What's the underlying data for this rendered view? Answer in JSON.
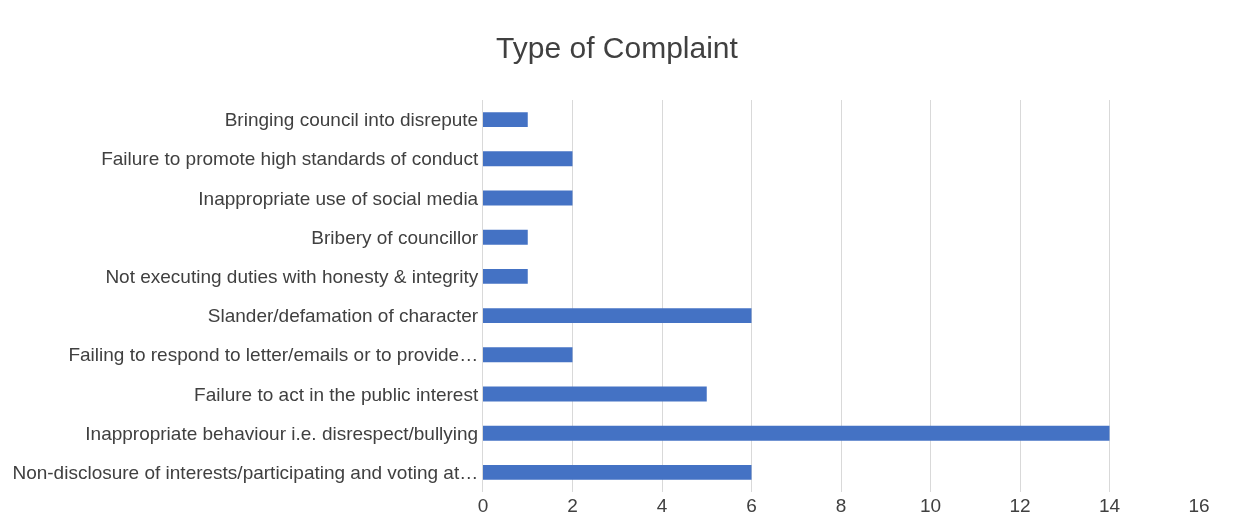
{
  "chart_data": {
    "type": "bar",
    "orientation": "horizontal",
    "title": "Type of Complaint",
    "categories": [
      "Bringing council into disrepute",
      "Failure to promote high standards of conduct",
      "Inappropriate use of social media",
      "Bribery of councillor",
      "Not executing duties with honesty & integrity",
      "Slander/defamation of character",
      "Failing to respond to letter/emails or to provide…",
      "Failure to act in the public interest",
      "Inappropriate behaviour i.e. disrespect/bullying",
      "Non-disclosure of interests/participating and voting at…"
    ],
    "values": [
      1,
      2,
      2,
      1,
      1,
      6,
      2,
      5,
      14,
      6
    ],
    "color": "#4472c4",
    "xlim": [
      0,
      16
    ],
    "xticks": [
      0,
      2,
      4,
      6,
      8,
      10,
      12,
      14,
      16
    ],
    "grid": "x"
  }
}
